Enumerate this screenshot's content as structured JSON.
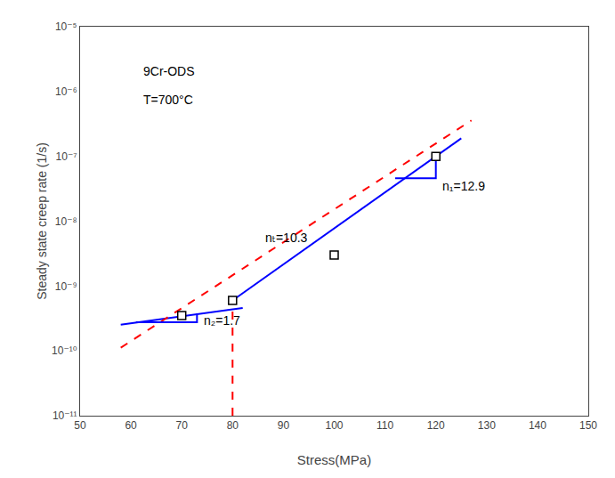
{
  "chart_data": {
    "type": "scatter",
    "log": "y",
    "grid": false,
    "xlabel": "Stress(MPa)",
    "ylabel": "Steady state creep rate (1/s)",
    "xlim": [
      50,
      150
    ],
    "ylim": [
      1e-11,
      1e-05
    ],
    "xticks": [
      50,
      60,
      70,
      80,
      90,
      100,
      110,
      120,
      130,
      140,
      150
    ],
    "yticks": [
      {
        "value": 1e-11,
        "label": "10⁻¹¹"
      },
      {
        "value": 1e-10,
        "label": "10⁻¹⁰"
      },
      {
        "value": 1e-09,
        "label": "10⁻⁹"
      },
      {
        "value": 1e-08,
        "label": "10⁻⁸"
      },
      {
        "value": 1e-07,
        "label": "10⁻⁷"
      },
      {
        "value": 1e-06,
        "label": "10⁻⁶"
      },
      {
        "value": 1e-05,
        "label": "10⁻⁵"
      }
    ],
    "series": [
      {
        "type": "scatter",
        "marker": "square-open",
        "color": "#000000",
        "x": [
          70,
          80,
          100,
          120
        ],
        "values": [
          3.5e-10,
          6e-10,
          3e-09,
          1e-07
        ]
      },
      {
        "type": "line",
        "color": "#0000FF",
        "line_style": "solid",
        "x": [
          58,
          82
        ],
        "values": [
          2.5424e-10,
          4.5802e-10
        ]
      },
      {
        "type": "line",
        "color": "#0000FF",
        "line_style": "solid",
        "x": [
          80,
          125
        ],
        "values": [
          6e-10,
          1.8986e-07
        ]
      },
      {
        "type": "line",
        "color": "#FF0000",
        "line_style": "dashed",
        "x": [
          58,
          127
        ],
        "values": [
          1.1189e-10,
          3.5861e-07
        ]
      },
      {
        "type": "line",
        "color": "#FF0000",
        "line_style": "dashed",
        "x": [
          80,
          80
        ],
        "values": [
          1e-11,
          6e-10
        ]
      },
      {
        "type": "line",
        "color": "#0000FF",
        "line_style": "solid",
        "x": [
          112,
          120,
          120
        ],
        "values": [
          4.6048e-08,
          4.6048e-08,
          1.12131e-07
        ]
      },
      {
        "type": "line",
        "color": "#0000FF",
        "line_style": "solid",
        "x": [
          61,
          73,
          73
        ],
        "values": [
          2.76983e-10,
          2.76983e-10,
          3.7588e-10
        ]
      }
    ],
    "annotations": [
      {
        "text": "9Cr-ODS",
        "x": 62,
        "y": 1.5e-06
      },
      {
        "text": "T=700°C",
        "x": 62,
        "y": 5.5e-07
      },
      {
        "text": "nₜ=10.3",
        "x": 86,
        "y": 4e-09
      },
      {
        "text": "n₁=12.9",
        "x": 121,
        "y": 2.5326e-08
      },
      {
        "text": "n₂=1.7",
        "x": 74,
        "y": 2.16047e-10
      }
    ]
  }
}
